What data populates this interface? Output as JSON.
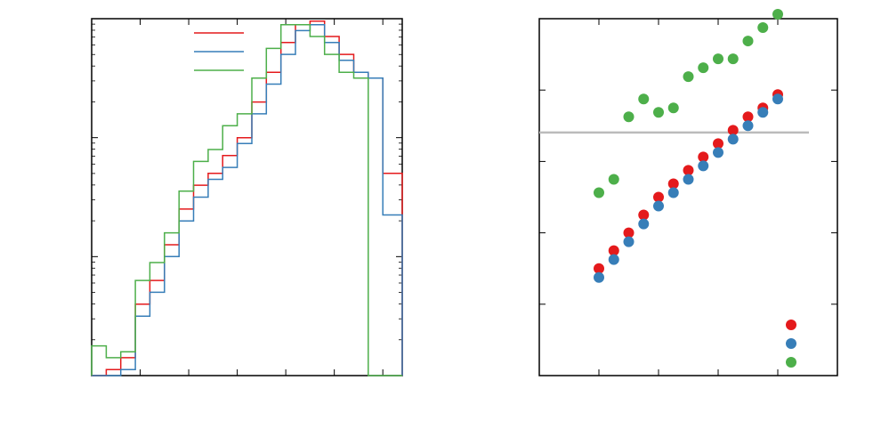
{
  "colors": {
    "red": "#e41a1c",
    "blue": "#377eb8",
    "green": "#4daf4a",
    "reference_line": "#bbbbbb",
    "axis": "#000000"
  },
  "chart_data": [
    {
      "type": "line",
      "subtype": "step-histogram",
      "title": "",
      "xlabel": "",
      "ylabel": "",
      "yscale": "log",
      "xlim": [
        -2.0,
        4.4
      ],
      "ylim_log10": [
        -3.0,
        0.0
      ],
      "grid": false,
      "legend_placement": "top-left",
      "bin_edges": [
        -2.0,
        -1.7,
        -1.4,
        -1.1,
        -0.8,
        -0.5,
        -0.2,
        0.1,
        0.4,
        0.7,
        1.0,
        1.3,
        1.6,
        1.9,
        2.2,
        2.5,
        2.8,
        3.1,
        3.4,
        3.7,
        4.0,
        4.4
      ],
      "series": [
        {
          "color_key": "red",
          "log10_values": [
            -3.0,
            -2.95,
            -2.85,
            -2.4,
            -2.2,
            -1.9,
            -1.6,
            -1.4,
            -1.3,
            -1.15,
            -1.0,
            -0.7,
            -0.45,
            -0.2,
            -0.05,
            -0.02,
            -0.15,
            -0.3,
            -0.45,
            -0.5,
            -1.3
          ]
        },
        {
          "color_key": "blue",
          "log10_values": [
            -3.0,
            -3.0,
            -2.95,
            -2.5,
            -2.3,
            -2.0,
            -1.7,
            -1.5,
            -1.35,
            -1.25,
            -1.05,
            -0.8,
            -0.55,
            -0.3,
            -0.1,
            -0.05,
            -0.2,
            -0.35,
            -0.45,
            -0.5,
            -1.65
          ]
        },
        {
          "color_key": "green",
          "log10_values": [
            -2.75,
            -2.85,
            -2.8,
            -2.2,
            -2.05,
            -1.8,
            -1.45,
            -1.2,
            -1.1,
            -0.9,
            -0.8,
            -0.5,
            -0.25,
            -0.05,
            -0.05,
            -0.15,
            -0.3,
            -0.45,
            -0.5,
            -3.0,
            -3.0
          ]
        }
      ]
    },
    {
      "type": "scatter",
      "title": "",
      "xlabel": "",
      "ylabel": "",
      "xlim": [
        0,
        20
      ],
      "ylim": [
        0,
        8
      ],
      "grid": false,
      "legend_placement": "bottom-right",
      "reference_line_y": 5.45,
      "x": [
        4,
        5,
        6,
        7,
        8,
        9,
        10,
        11,
        12,
        13,
        14,
        15,
        16
      ],
      "series": [
        {
          "color_key": "red",
          "values": [
            2.4,
            2.8,
            3.2,
            3.6,
            4.0,
            4.3,
            4.6,
            4.9,
            5.2,
            5.5,
            5.8,
            6.0,
            6.3
          ]
        },
        {
          "color_key": "blue",
          "values": [
            2.2,
            2.6,
            3.0,
            3.4,
            3.8,
            4.1,
            4.4,
            4.7,
            5.0,
            5.3,
            5.6,
            5.9,
            6.2
          ]
        },
        {
          "color_key": "green",
          "values": [
            4.1,
            4.4,
            5.8,
            6.2,
            5.9,
            6.0,
            6.7,
            6.9,
            7.1,
            7.1,
            7.5,
            7.8,
            8.1
          ]
        }
      ]
    }
  ]
}
